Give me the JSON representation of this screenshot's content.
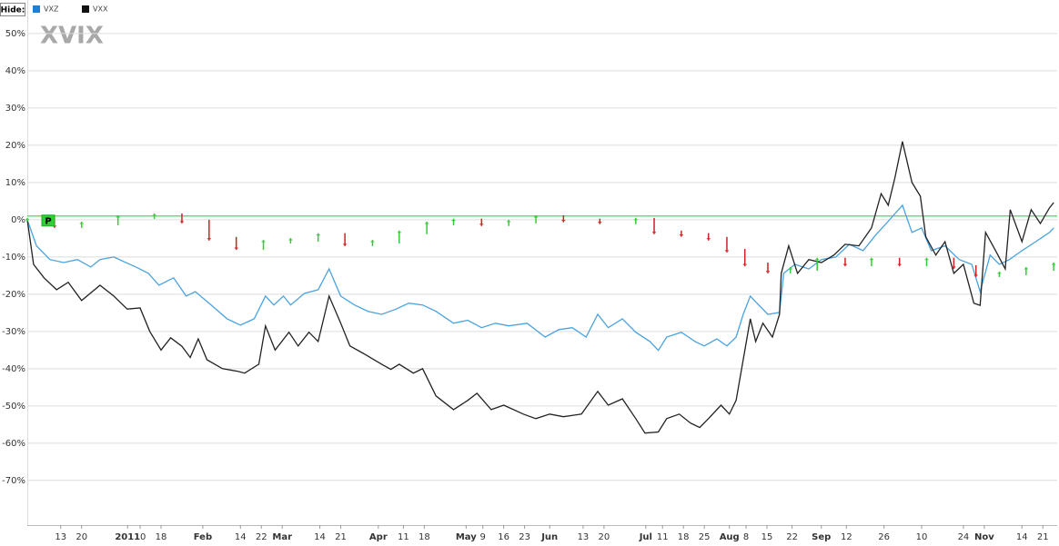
{
  "legend_label": "Hide:",
  "chart_data": {
    "type": "line",
    "title": "XVIX",
    "xlim": [
      0,
      246
    ],
    "ylim": [
      -82,
      59
    ],
    "grid": true,
    "yticks": [
      {
        "value": -70,
        "label": "-70%"
      },
      {
        "value": -60,
        "label": "-60%"
      },
      {
        "value": -50,
        "label": "-50%"
      },
      {
        "value": -40,
        "label": "-40%"
      },
      {
        "value": -30,
        "label": "-30%"
      },
      {
        "value": -20,
        "label": "-20%"
      },
      {
        "value": -10,
        "label": "-10%"
      },
      {
        "value": 0,
        "label": "0%"
      },
      {
        "value": 10,
        "label": "10%"
      },
      {
        "value": 20,
        "label": "20%"
      },
      {
        "value": 30,
        "label": "30%"
      },
      {
        "value": 40,
        "label": "40%"
      },
      {
        "value": 50,
        "label": "50%"
      }
    ],
    "xticks": [
      {
        "value": 8,
        "label": "13"
      },
      {
        "value": 13,
        "label": "20"
      },
      {
        "value": 24,
        "label": "2011"
      },
      {
        "value": 27,
        "label": "10"
      },
      {
        "value": 32,
        "label": "18"
      },
      {
        "value": 42,
        "label": "Feb"
      },
      {
        "value": 51,
        "label": "14"
      },
      {
        "value": 56,
        "label": "22"
      },
      {
        "value": 61,
        "label": "Mar"
      },
      {
        "value": 70,
        "label": "14"
      },
      {
        "value": 75,
        "label": "21"
      },
      {
        "value": 84,
        "label": "Apr"
      },
      {
        "value": 90,
        "label": "11"
      },
      {
        "value": 95,
        "label": "18"
      },
      {
        "value": 105,
        "label": "May"
      },
      {
        "value": 109,
        "label": "9"
      },
      {
        "value": 114,
        "label": "16"
      },
      {
        "value": 119,
        "label": "23"
      },
      {
        "value": 125,
        "label": "Jun"
      },
      {
        "value": 133,
        "label": "13"
      },
      {
        "value": 138,
        "label": "20"
      },
      {
        "value": 148,
        "label": "Jul"
      },
      {
        "value": 152,
        "label": "11"
      },
      {
        "value": 157,
        "label": "18"
      },
      {
        "value": 162,
        "label": "25"
      },
      {
        "value": 168,
        "label": "Aug"
      },
      {
        "value": 172,
        "label": "8"
      },
      {
        "value": 177,
        "label": "15"
      },
      {
        "value": 183,
        "label": "22"
      },
      {
        "value": 190,
        "label": "Sep"
      },
      {
        "value": 196,
        "label": "12"
      },
      {
        "value": 205,
        "label": "26"
      },
      {
        "value": 214,
        "label": "10"
      },
      {
        "value": 224,
        "label": "24"
      },
      {
        "value": 229,
        "label": "Nov"
      },
      {
        "value": 238,
        "label": "14"
      },
      {
        "value": 243,
        "label": "21"
      }
    ],
    "reference_line": {
      "value": 1,
      "color": "#5ee85e",
      "label": "P"
    },
    "series": [
      {
        "name": "VXZ",
        "color": "#4aa3df",
        "x": [
          0,
          2.2,
          5.4,
          8.7,
          12,
          15.2,
          17.4,
          20.7,
          23,
          26,
          29,
          31.5,
          35,
          38,
          40.2,
          44,
          47.8,
          51,
          54.3,
          57,
          59,
          61.3,
          63,
          66.3,
          69.6,
          72.2,
          75,
          78.3,
          81.5,
          84.8,
          88,
          91.3,
          94.6,
          97.8,
          102,
          105.4,
          108.7,
          112,
          115.2,
          119.6,
          123.9,
          127.2,
          130.4,
          133.7,
          136.5,
          139,
          142.4,
          145.6,
          149,
          151,
          153,
          156.5,
          159.8,
          162,
          165,
          167.4,
          169.6,
          171.3,
          173,
          175,
          177.2,
          180,
          181,
          183.7,
          187,
          190,
          193.5,
          196.7,
          200,
          203,
          206.5,
          209.4,
          211.7,
          214,
          216.3,
          219.6,
          223,
          226,
          228,
          230.4,
          232.6,
          235,
          238,
          241.3,
          244.6,
          245.6
        ],
        "values": [
          0,
          -7,
          -10.7,
          -11.5,
          -10.7,
          -12.7,
          -10.7,
          -10,
          -11.2,
          -12.7,
          -14.4,
          -17.6,
          -15.6,
          -20.5,
          -19.3,
          -22.9,
          -26.6,
          -28.3,
          -26.6,
          -20.5,
          -22.9,
          -20.5,
          -22.9,
          -19.8,
          -18.8,
          -13.2,
          -20.5,
          -22.9,
          -24.6,
          -25.4,
          -24.1,
          -22.4,
          -22.9,
          -24.6,
          -27.8,
          -27,
          -29,
          -27.8,
          -28.5,
          -27.8,
          -31.5,
          -29.5,
          -29,
          -31.5,
          -25.4,
          -29,
          -26.6,
          -30.2,
          -32.7,
          -35.1,
          -31.5,
          -30.2,
          -32.7,
          -33.9,
          -32,
          -33.9,
          -31.5,
          -25.4,
          -20.5,
          -22.9,
          -25.4,
          -24.9,
          -14.4,
          -12,
          -13.2,
          -10.7,
          -10,
          -6.6,
          -8.3,
          -4.1,
          0.2,
          3.9,
          -3.4,
          -2.2,
          -8.3,
          -7,
          -10.7,
          -12,
          -19.3,
          -9.5,
          -12,
          -10.7,
          -8.3,
          -5.9,
          -3.4,
          -2.2
        ]
      },
      {
        "name": "VXX",
        "color": "#222222",
        "x": [
          0,
          1.5,
          4,
          7,
          9.8,
          13,
          17.4,
          20.7,
          23.9,
          27,
          29.3,
          32,
          34.3,
          37,
          39,
          40.9,
          43,
          46.7,
          50.4,
          52,
          55.4,
          57,
          59.3,
          62.6,
          64.8,
          67.4,
          69.6,
          72.2,
          75,
          77.2,
          80.4,
          84.8,
          87,
          89,
          92.4,
          94.6,
          97.8,
          102,
          105.4,
          107.6,
          111,
          114,
          118.7,
          121.7,
          125,
          128.3,
          132.6,
          136.5,
          139,
          142.4,
          145.6,
          147.8,
          151,
          153,
          156,
          158.7,
          160.9,
          163,
          166,
          168,
          169.6,
          171.3,
          173,
          174.3,
          176,
          178.3,
          180,
          180.4,
          182.2,
          184.3,
          187,
          190,
          193,
          195.7,
          199,
          202,
          204.3,
          206,
          207.6,
          209.4,
          211.7,
          213.7,
          215,
          217.4,
          219.6,
          221.7,
          224,
          226.5,
          228,
          229.3,
          231.7,
          234,
          235.2,
          238,
          240.2,
          242.4,
          244.6,
          245.6
        ],
        "values": [
          0,
          -12,
          -15.6,
          -18.8,
          -16.8,
          -21.7,
          -17.6,
          -20.5,
          -24,
          -23.7,
          -30,
          -35,
          -31.7,
          -34,
          -37,
          -32,
          -37.6,
          -40,
          -40.7,
          -41.2,
          -38.8,
          -28.5,
          -35,
          -30.2,
          -33.9,
          -30.2,
          -32.7,
          -20.5,
          -27.8,
          -33.9,
          -35.9,
          -38.8,
          -40.2,
          -38.8,
          -41.2,
          -40,
          -47.3,
          -51,
          -48.5,
          -46.6,
          -51,
          -49.8,
          -52.2,
          -53.4,
          -52.2,
          -52.9,
          -52.2,
          -46.1,
          -49.8,
          -48.1,
          -53.4,
          -57.3,
          -57,
          -53.4,
          -52.2,
          -54.6,
          -55.8,
          -53.4,
          -49.8,
          -52.2,
          -48.5,
          -37.6,
          -26.6,
          -32.7,
          -27.8,
          -31.5,
          -25.4,
          -14.4,
          -7,
          -14.4,
          -10.7,
          -11.5,
          -9.5,
          -6.6,
          -7,
          -2.2,
          7,
          3.9,
          11.2,
          21,
          10,
          6.3,
          -4.6,
          -9.5,
          -5.9,
          -14.4,
          -12,
          -22.4,
          -23,
          -3.4,
          -8.3,
          -13.2,
          2.7,
          -5.9,
          2.7,
          -1,
          3.2,
          4.6
        ]
      },
      {
        "style": "candle",
        "up_color": "#33cc33",
        "down_color": "#cc2222",
        "x": [
          0,
          6.5,
          13,
          21.7,
          30.4,
          37,
          43.5,
          50,
          56.5,
          63,
          69.6,
          76,
          82.6,
          89,
          95.6,
          102,
          108.7,
          115.2,
          121.7,
          128.3,
          137,
          145.6,
          150,
          156.5,
          163,
          167.4,
          171.7,
          177.2,
          182.6,
          189,
          195.7,
          202,
          208.7,
          215.2,
          221.7,
          227,
          232.6,
          239,
          245.6
        ],
        "values": [
          0,
          -1.7,
          -1,
          0.7,
          1.2,
          -0.5,
          -5.1,
          -7.6,
          -5.9,
          -5.4,
          -4.1,
          -6.6,
          -5.9,
          -3.4,
          -1,
          -0.2,
          -1.2,
          -0.5,
          0.7,
          -0.2,
          -0.7,
          0,
          -3.4,
          -4.1,
          -5.1,
          -8.3,
          -12,
          -13.9,
          -13.2,
          -10.7,
          -12,
          -10.7,
          -12,
          -10.7,
          -12.7,
          -14.9,
          -14.4,
          -13.2,
          -12
        ]
      }
    ]
  }
}
